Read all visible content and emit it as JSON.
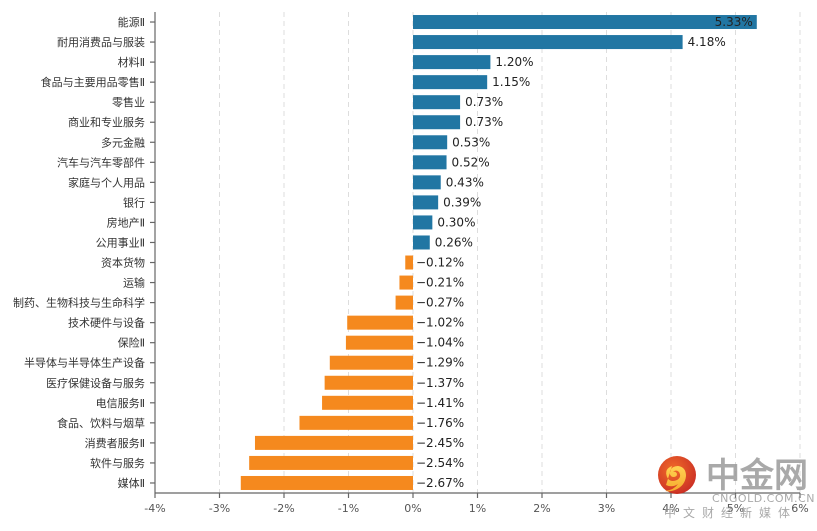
{
  "chart_data": {
    "type": "bar",
    "orientation": "horizontal",
    "title": "",
    "xlabel": "",
    "ylabel": "",
    "xlim": [
      -4,
      6
    ],
    "x_ticks": [
      -4,
      -3,
      -2,
      -1,
      0,
      1,
      2,
      3,
      4,
      5,
      6
    ],
    "x_tick_labels": [
      "-4%",
      "-3%",
      "-2%",
      "-1%",
      "0%",
      "1%",
      "2%",
      "3%",
      "4%",
      "5%",
      "6%"
    ],
    "grid": "vertical dashed",
    "legend": "none",
    "value_suffix": "%",
    "colors": {
      "positive": "#2176a3",
      "negative": "#f5891e"
    },
    "categories": [
      "能源Ⅱ",
      "耐用消费品与服装",
      "材料Ⅱ",
      "食品与主要用品零售Ⅱ",
      "零售业",
      "商业和专业服务",
      "多元金融",
      "汽车与汽车零部件",
      "家庭与个人用品",
      "银行",
      "房地产Ⅱ",
      "公用事业Ⅱ",
      "资本货物",
      "运输",
      "制药、生物科技与生命科学",
      "技术硬件与设备",
      "保险Ⅱ",
      "半导体与半导体生产设备",
      "医疗保健设备与服务",
      "电信服务Ⅱ",
      "食品、饮料与烟草",
      "消费者服务Ⅱ",
      "软件与服务",
      "媒体Ⅱ"
    ],
    "values": [
      5.33,
      4.18,
      1.2,
      1.15,
      0.73,
      0.73,
      0.53,
      0.52,
      0.43,
      0.39,
      0.3,
      0.26,
      -0.12,
      -0.21,
      -0.27,
      -1.02,
      -1.04,
      -1.29,
      -1.37,
      -1.41,
      -1.76,
      -2.45,
      -2.54,
      -2.67
    ],
    "value_labels": [
      "5.33%",
      "4.18%",
      "1.20%",
      "1.15%",
      "0.73%",
      "0.73%",
      "0.53%",
      "0.52%",
      "0.43%",
      "0.39%",
      "0.30%",
      "0.26%",
      "−0.12%",
      "−0.21%",
      "−0.27%",
      "−1.02%",
      "−1.04%",
      "−1.29%",
      "−1.37%",
      "−1.41%",
      "−1.76%",
      "−2.45%",
      "−2.54%",
      "−2.67%"
    ]
  },
  "watermark": {
    "logo_icon": "cngold-swirl-logo",
    "title": "中金网",
    "domain": "CNGOLD.COM.CN",
    "slogan": "中文财经新媒体"
  }
}
